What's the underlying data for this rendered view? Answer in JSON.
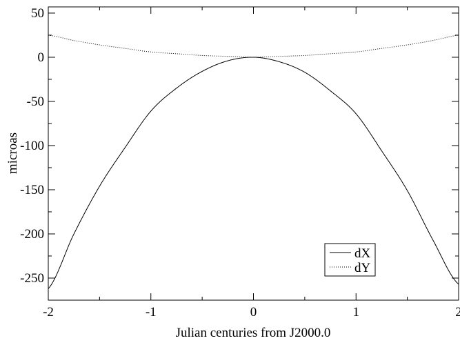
{
  "chart_data": {
    "type": "line",
    "title": "",
    "xlabel": "Julian centuries from J2000.0",
    "ylabel": "microas",
    "xlim": [
      -2,
      2
    ],
    "ylim": [
      -275,
      57
    ],
    "x_ticks": [
      -2,
      -1,
      0,
      1,
      2
    ],
    "x_tick_labels": [
      "-2",
      "-1",
      "0",
      "1",
      "2"
    ],
    "y_ticks": [
      50,
      0,
      -50,
      -100,
      -150,
      -200,
      -250
    ],
    "y_tick_labels": [
      "50",
      "0",
      "-50",
      "-100",
      "-150",
      "-200",
      "-250"
    ],
    "grid": false,
    "legend_position": "bottom-right",
    "series": [
      {
        "name": "dX",
        "style": "solid",
        "color": "#000000",
        "x": [
          -2.0,
          -1.75,
          -1.5,
          -1.25,
          -1.0,
          -0.75,
          -0.5,
          -0.25,
          0.0,
          0.25,
          0.5,
          0.75,
          1.0,
          1.25,
          1.5,
          1.75,
          2.0
        ],
        "y": [
          -262,
          -200,
          -146,
          -102,
          -61,
          -35,
          -16,
          -4,
          0,
          -5,
          -17,
          -38,
          -64,
          -106,
          -151,
          -207,
          -257
        ]
      },
      {
        "name": "dY",
        "style": "dotted",
        "color": "#000000",
        "x": [
          -2.0,
          -1.75,
          -1.5,
          -1.25,
          -1.0,
          -0.75,
          -0.5,
          -0.25,
          0.0,
          0.25,
          0.5,
          0.75,
          1.0,
          1.25,
          1.5,
          1.75,
          2.0
        ],
        "y": [
          25,
          19,
          14,
          10,
          6,
          4,
          2,
          1,
          0,
          1,
          2,
          4,
          6,
          10,
          14,
          19,
          25
        ]
      }
    ]
  }
}
